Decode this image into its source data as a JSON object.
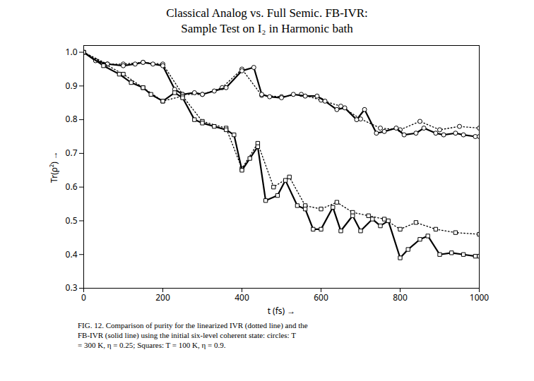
{
  "chart_data": {
    "type": "line",
    "title": "Classical Analog vs. Full Semic. FB-IVR:",
    "subtitle": "Sample Test on I₂ in Harmonic bath",
    "caption": [
      "FIG. 12.  Comparison of purity for the linearized IVR (dotted line) and the",
      "FB-IVR (solid line) using the initial six-level coherent state: circles: T",
      "= 300 K,  η = 0.25; Squares: T = 100 K,  η = 0.9."
    ],
    "x_label": "t (fs)",
    "y_label": "Tr(ρ²)",
    "xlim": [
      0,
      1000
    ],
    "ylim": [
      0.3,
      1.02
    ],
    "xticks": [
      0,
      200,
      400,
      600,
      800,
      1000
    ],
    "yticks": [
      {
        "value": 0.3,
        "label": "0.3"
      },
      {
        "value": 0.4,
        "label": "0.4"
      },
      {
        "value": 0.5,
        "label": "0.5"
      },
      {
        "value": 0.6,
        "label": "0.6"
      },
      {
        "value": 0.7,
        "label": "0.7"
      },
      {
        "value": 0.8,
        "label": "0.8"
      },
      {
        "value": 0.9,
        "label": "0.9"
      },
      {
        "value": 1.0,
        "label": "1.0"
      }
    ],
    "grid": false,
    "series": [
      {
        "color": "black",
        "marker": "circle",
        "line_style": "dotted",
        "x": [
          0,
          60,
          100,
          150,
          200,
          250,
          300,
          350,
          400,
          450,
          500,
          550,
          600,
          650,
          700,
          750,
          800,
          850,
          900,
          950,
          1000
        ],
        "values": [
          1.0,
          0.965,
          0.965,
          0.97,
          0.965,
          0.875,
          0.875,
          0.895,
          0.95,
          0.872,
          0.868,
          0.875,
          0.858,
          0.84,
          0.802,
          0.775,
          0.77,
          0.795,
          0.77,
          0.78,
          0.775
        ]
      },
      {
        "color": "black",
        "marker": "circle",
        "line_style": "solid",
        "x": [
          0,
          30,
          60,
          100,
          130,
          150,
          175,
          200,
          230,
          250,
          280,
          300,
          330,
          360,
          400,
          430,
          450,
          470,
          500,
          530,
          560,
          590,
          610,
          640,
          660,
          690,
          710,
          740,
          760,
          790,
          810,
          840,
          860,
          890,
          910,
          940,
          960,
          990,
          1000
        ],
        "values": [
          1.0,
          0.975,
          0.965,
          0.96,
          0.965,
          0.97,
          0.965,
          0.96,
          0.89,
          0.875,
          0.88,
          0.875,
          0.885,
          0.895,
          0.945,
          0.955,
          0.875,
          0.868,
          0.865,
          0.875,
          0.87,
          0.87,
          0.855,
          0.83,
          0.835,
          0.8,
          0.83,
          0.76,
          0.765,
          0.775,
          0.755,
          0.76,
          0.775,
          0.76,
          0.755,
          0.76,
          0.755,
          0.75,
          0.75
        ]
      },
      {
        "color": "black",
        "marker": "square",
        "line_style": "dotted",
        "x": [
          0,
          100,
          150,
          200,
          250,
          300,
          360,
          400,
          440,
          480,
          520,
          560,
          600,
          640,
          680,
          720,
          760,
          800,
          840,
          890,
          940,
          1000
        ],
        "values": [
          1.0,
          0.935,
          0.895,
          0.855,
          0.87,
          0.795,
          0.775,
          0.655,
          0.73,
          0.6,
          0.63,
          0.545,
          0.535,
          0.555,
          0.525,
          0.515,
          0.505,
          0.475,
          0.495,
          0.475,
          0.465,
          0.46
        ]
      },
      {
        "color": "black",
        "marker": "square",
        "line_style": "solid",
        "x": [
          0,
          50,
          90,
          120,
          150,
          170,
          200,
          230,
          250,
          280,
          300,
          330,
          360,
          380,
          400,
          420,
          440,
          460,
          490,
          510,
          540,
          560,
          580,
          600,
          630,
          650,
          680,
          700,
          730,
          750,
          770,
          800,
          820,
          850,
          870,
          900,
          930,
          960,
          990,
          1000
        ],
        "values": [
          1.0,
          0.96,
          0.935,
          0.91,
          0.895,
          0.875,
          0.855,
          0.88,
          0.865,
          0.8,
          0.79,
          0.78,
          0.77,
          0.755,
          0.65,
          0.685,
          0.72,
          0.56,
          0.575,
          0.62,
          0.545,
          0.535,
          0.475,
          0.475,
          0.54,
          0.47,
          0.515,
          0.47,
          0.505,
          0.485,
          0.5,
          0.39,
          0.415,
          0.445,
          0.455,
          0.4,
          0.405,
          0.4,
          0.395,
          0.395
        ]
      }
    ]
  }
}
